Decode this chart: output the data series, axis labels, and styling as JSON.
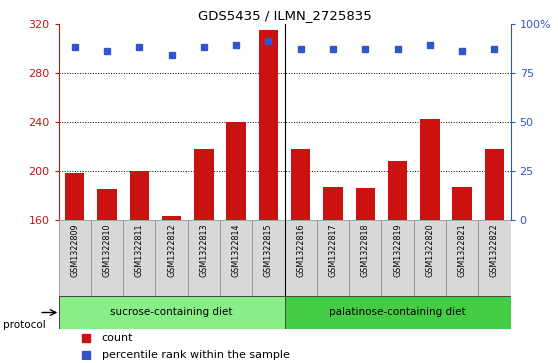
{
  "title": "GDS5435 / ILMN_2725835",
  "samples": [
    "GSM1322809",
    "GSM1322810",
    "GSM1322811",
    "GSM1322812",
    "GSM1322813",
    "GSM1322814",
    "GSM1322815",
    "GSM1322816",
    "GSM1322817",
    "GSM1322818",
    "GSM1322819",
    "GSM1322820",
    "GSM1322821",
    "GSM1322822"
  ],
  "counts": [
    198,
    185,
    200,
    163,
    218,
    240,
    315,
    218,
    187,
    186,
    208,
    242,
    187,
    218
  ],
  "percentiles": [
    88,
    86,
    88,
    84,
    88,
    89,
    91,
    87,
    87,
    87,
    87,
    89,
    86,
    87
  ],
  "ylim_left": [
    160,
    320
  ],
  "ylim_right": [
    0,
    100
  ],
  "yticks_left": [
    160,
    200,
    240,
    280,
    320
  ],
  "yticks_right": [
    0,
    25,
    50,
    75,
    100
  ],
  "bar_color": "#cc1111",
  "dot_color": "#3355cc",
  "background_color": "#ffffff",
  "plot_bg_color": "#ffffff",
  "protocol_groups": [
    {
      "label": "sucrose-containing diet",
      "start": 0,
      "end": 6,
      "color": "#88ee88"
    },
    {
      "label": "palatinose-containing diet",
      "start": 7,
      "end": 13,
      "color": "#44cc44"
    }
  ],
  "left_axis_color": "#cc1111",
  "right_axis_color": "#3355cc",
  "protocol_label": "protocol",
  "legend_count_label": "count",
  "legend_percentile_label": "percentile rank within the sample",
  "split_index": 6
}
